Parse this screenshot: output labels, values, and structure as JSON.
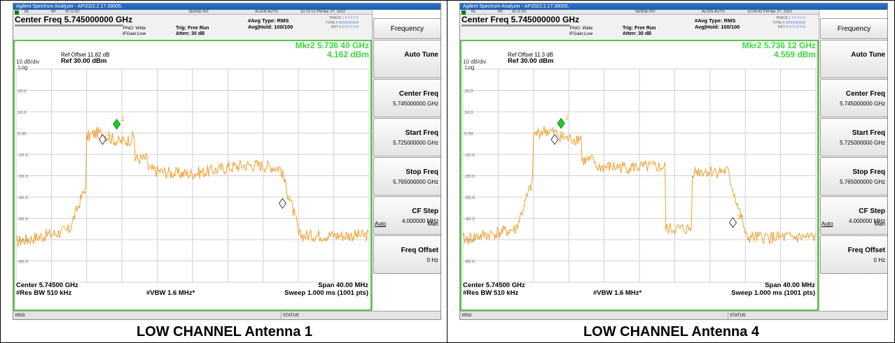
{
  "panels": [
    {
      "window_title": "Agilent Spectrum Analyzer - AP2022.2.17.39005,",
      "status_strip": {
        "rl": "RL",
        "rf": "RF",
        "ohms": "50 Ω  DC",
        "sense": "SENSE:INT",
        "align": "ALIGN AUTO",
        "timestamp": "10:13:12 PM Apr 27, 2022"
      },
      "center_freq_text": "Center Freq 5.745000000 GHz",
      "pno_text": "PNO: Wide",
      "ifgain_text": "IFGain:Low",
      "trig_text": "Trig: Free Run",
      "atten_text": "Atten: 30 dB",
      "avg_type": "#Avg Type: RMS",
      "avg_hold": "Avg|Hold: 100/100",
      "trace_label": "TRACE",
      "type_label": "TYPE",
      "det_label": "DET",
      "trace_digits": "1 2 3 4 5 6",
      "type_value": "A WWWWWW",
      "det_value": "A N N N N N",
      "ref_offset": "Ref Offset 11.82 dB",
      "ref_level": "Ref 30.00 dBm",
      "db_div": "10 dB/div",
      "log_label": "Log",
      "marker_freq": "Mkr2 5.736 40 GHz",
      "marker_power": "4.162 dBm",
      "y_ticks": [
        "20.0",
        "10.0",
        "0.00",
        "-10.0",
        "-20.0",
        "-30.0",
        "-40.0",
        "-50.0",
        "-60.0"
      ],
      "center_footer": "Center 5.74500 GHz",
      "rbw": "#Res BW 510 kHz",
      "vbw": "#VBW 1.6 MHz*",
      "span": "Span 40.00 MHz",
      "sweep": "Sweep  1.000 ms (1001 pts)",
      "msg": "MSG",
      "status": "STATUS",
      "softkeys": {
        "menu": "Frequency",
        "auto_tune": "Auto Tune",
        "center_label": "Center Freq",
        "center_value": "5.745000000 GHz",
        "start_label": "Start Freq",
        "start_value": "5.725000000 GHz",
        "stop_label": "Stop Freq",
        "stop_value": "5.765000000 GHz",
        "cfstep_label": "CF Step",
        "cfstep_value": "4.000000 MHz",
        "auto": "Auto",
        "man": "Man",
        "offset_label": "Freq Offset",
        "offset_value": "0 Hz"
      },
      "markers": [
        {
          "label": "1",
          "freq_mhz": 5734.8,
          "dbm": -3.0
        },
        {
          "label": "2",
          "freq_mhz": 5736.4,
          "dbm": 4.162
        },
        {
          "label": "3",
          "freq_mhz": 5755.2,
          "dbm": -33.0
        }
      ],
      "trace_shape": "mask-a",
      "caption": "LOW CHANNEL Antenna 1"
    },
    {
      "window_title": "Agilent Spectrum Analyzer - AP2022.2.17.39005,",
      "status_strip": {
        "rl": "RL",
        "rf": "RF",
        "ohms": "50 Ω  DC",
        "sense": "SENSE:INT",
        "align": "ALIGN AUTO",
        "timestamp": "10:00:42 PM Apr 27, 2022"
      },
      "center_freq_text": "Center Freq 5.745000000 GHz",
      "pno_text": "PNO: Wide",
      "ifgain_text": "IFGain:Low",
      "trig_text": "Trig: Free Run",
      "atten_text": "Atten: 30 dB",
      "avg_type": "#Avg Type: RMS",
      "avg_hold": "Avg|Hold: 100/100",
      "trace_label": "TRACE",
      "type_label": "TYPE",
      "det_label": "DET",
      "trace_digits": "1 2 3 4 5 6",
      "type_value": "A WWWWWW",
      "det_value": "A N N N N N",
      "ref_offset": "Ref Offset 11.3 dB",
      "ref_level": "Ref 30.00 dBm",
      "db_div": "10 dB/div",
      "log_label": "Log",
      "marker_freq": "Mkr2 5.736 12 GHz",
      "marker_power": "4.559 dBm",
      "y_ticks": [
        "20.0",
        "10.0",
        "0.00",
        "-10.0",
        "-20.0",
        "-30.0",
        "-40.0",
        "-50.0",
        "-60.0"
      ],
      "center_footer": "Center 5.74500 GHz",
      "rbw": "#Res BW 510 kHz",
      "vbw": "#VBW 1.6 MHz*",
      "span": "Span 40.00 MHz",
      "sweep": "Sweep  1.000 ms (1001 pts)",
      "msg": "MSG",
      "status": "STATUS",
      "softkeys": {
        "menu": "Frequency",
        "auto_tune": "Auto Tune",
        "center_label": "Center Freq",
        "center_value": "5.745000000 GHz",
        "start_label": "Start Freq",
        "start_value": "5.725000000 GHz",
        "stop_label": "Stop Freq",
        "stop_value": "5.765000000 GHz",
        "cfstep_label": "CF Step",
        "cfstep_value": "4.000000 MHz",
        "auto": "Auto",
        "man": "Man",
        "offset_label": "Freq Offset",
        "offset_value": "0 Hz"
      },
      "markers": [
        {
          "label": "1",
          "freq_mhz": 5735.4,
          "dbm": -3.0
        },
        {
          "label": "2",
          "freq_mhz": 5736.12,
          "dbm": 4.559
        },
        {
          "label": "3",
          "freq_mhz": 5755.6,
          "dbm": -42.0
        }
      ],
      "trace_shape": "mask-b",
      "caption": "LOW CHANNEL Antenna 4"
    }
  ],
  "colors": {
    "trace": "#f0a030",
    "marker_active": "#22cc22",
    "marker_text": "#e8a020",
    "border": "#58c64a",
    "grid": "#d0d0d0"
  }
}
